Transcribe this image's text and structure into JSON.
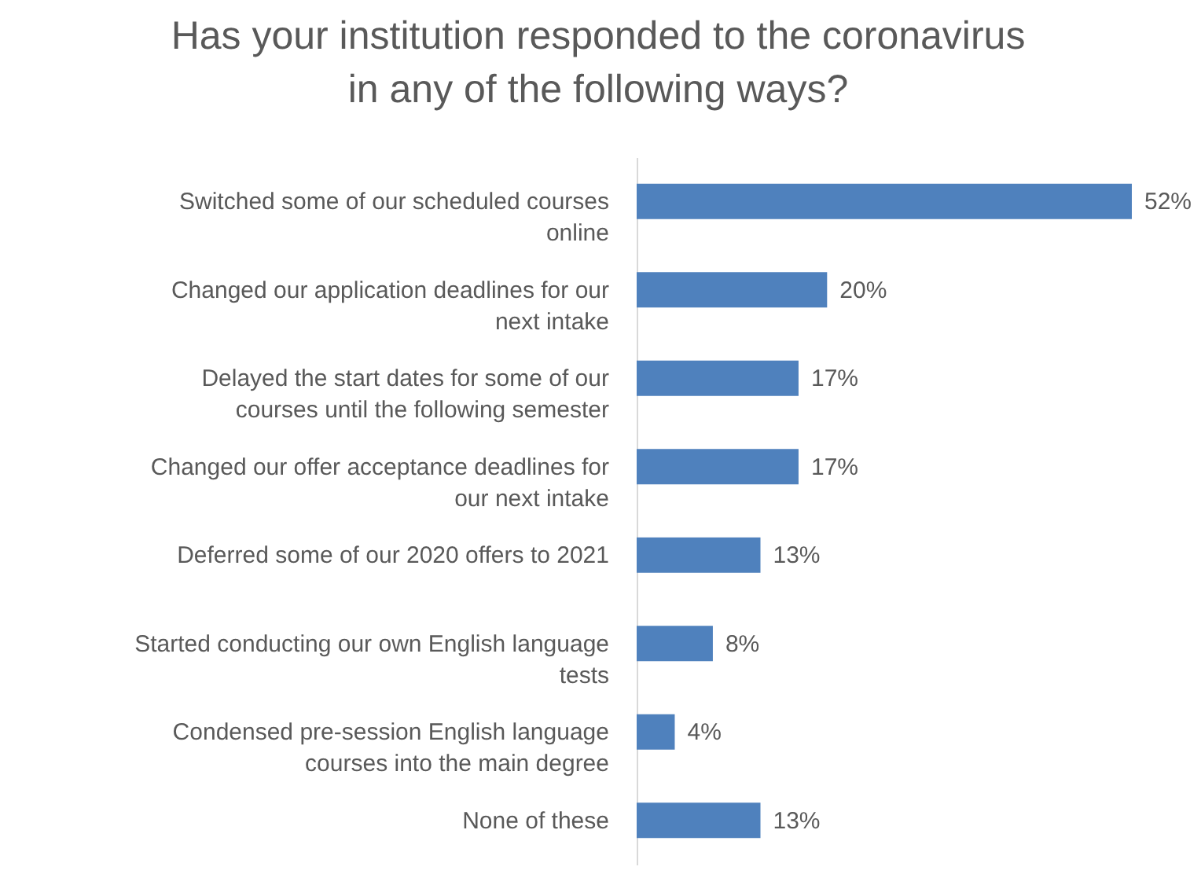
{
  "chart_data": {
    "type": "bar",
    "orientation": "horizontal",
    "title": "Has your institution responded to the coronavirus\nin any of the following ways?",
    "categories": [
      "Switched some of our scheduled courses online",
      "Changed our application deadlines for our next intake",
      "Delayed the start dates for some of our courses until the following semester",
      "Changed our offer acceptance deadlines for our next intake",
      "Deferred some of our 2020 offers to 2021",
      "Started conducting our own English language tests",
      "Condensed pre-session English language courses into the main degree",
      "None of these"
    ],
    "values": [
      52,
      20,
      17,
      17,
      13,
      8,
      4,
      13
    ],
    "value_labels": [
      "52%",
      "20%",
      "17%",
      "17%",
      "13%",
      "8%",
      "4%",
      "13%"
    ],
    "color": "#4f81bd"
  }
}
